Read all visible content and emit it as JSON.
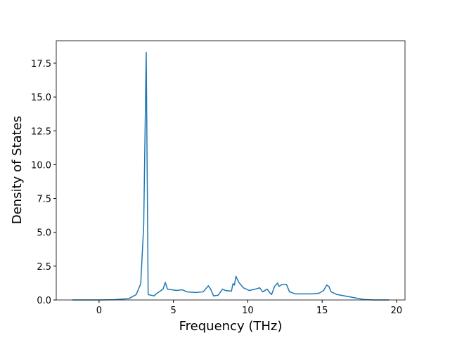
{
  "chart_data": {
    "type": "line",
    "xlabel": "Frequency (THz)",
    "ylabel": "Density of States",
    "xlim": [
      -2.88,
      20.57
    ],
    "ylim": [
      0,
      19.16
    ],
    "xticks": [
      0,
      5,
      10,
      15,
      20
    ],
    "yticks": [
      {
        "value": 0,
        "label": "0.0"
      },
      {
        "value": 2.5,
        "label": "2.5"
      },
      {
        "value": 5,
        "label": "5.0"
      },
      {
        "value": 7.5,
        "label": "7.5"
      },
      {
        "value": 10,
        "label": "10.0"
      },
      {
        "value": 12.5,
        "label": "12.5"
      },
      {
        "value": 15,
        "label": "15.0"
      },
      {
        "value": 17.5,
        "label": "17.5"
      }
    ],
    "series": [
      {
        "color": "#1f77b4",
        "x": [
          -1.8,
          0,
          1,
          2,
          2.5,
          2.8,
          3.0,
          3.17,
          3.3,
          3.7,
          3.9,
          4.3,
          4.45,
          4.6,
          5.2,
          5.6,
          5.9,
          6.5,
          7.0,
          7.35,
          7.5,
          7.7,
          8.0,
          8.3,
          8.5,
          8.9,
          9.0,
          9.1,
          9.2,
          9.4,
          9.7,
          10.1,
          10.5,
          10.8,
          11.0,
          11.3,
          11.5,
          11.6,
          11.8,
          12.0,
          12.1,
          12.3,
          12.6,
          12.8,
          13.2,
          14.3,
          14.8,
          15.1,
          15.3,
          15.45,
          15.6,
          16,
          17,
          17.8,
          18.5,
          19.5
        ],
        "values": [
          0,
          0,
          0.02,
          0.1,
          0.4,
          1.2,
          5.5,
          18.3,
          0.4,
          0.3,
          0.5,
          0.8,
          1.3,
          0.8,
          0.7,
          0.75,
          0.6,
          0.55,
          0.6,
          1.05,
          0.8,
          0.3,
          0.35,
          0.8,
          0.7,
          0.65,
          1.2,
          1.1,
          1.75,
          1.3,
          0.9,
          0.7,
          0.8,
          0.9,
          0.6,
          0.8,
          0.5,
          0.4,
          1.0,
          1.25,
          1.0,
          1.15,
          1.15,
          0.6,
          0.45,
          0.45,
          0.5,
          0.7,
          1.1,
          1.0,
          0.6,
          0.4,
          0.2,
          0.03,
          0,
          0
        ]
      }
    ]
  }
}
